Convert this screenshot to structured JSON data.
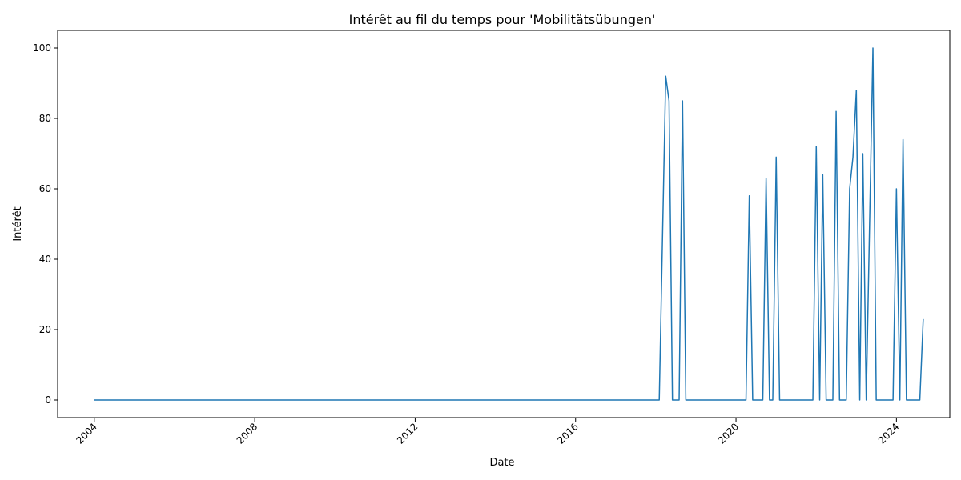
{
  "chart_data": {
    "type": "line",
    "title": "Intérêt au fil du temps pour 'Mobilitätsübungen'",
    "xlabel": "Date",
    "ylabel": "Intérêt",
    "xlim": [
      "2003-02-01",
      "2025-05-01"
    ],
    "ylim": [
      -5,
      105
    ],
    "x_ticks": [
      "2004",
      "2008",
      "2012",
      "2016",
      "2020",
      "2024"
    ],
    "y_ticks": [
      0,
      20,
      40,
      60,
      80,
      100
    ],
    "grid": false,
    "legend": "none",
    "line_color": "#1f77b4",
    "series": [
      {
        "x": [
          "2004-01-01",
          "2018-02-01",
          "2018-04-01",
          "2018-05-01",
          "2018-06-01",
          "2018-07-01",
          "2018-08-01",
          "2018-09-01",
          "2018-10-01",
          "2020-04-01",
          "2020-05-01",
          "2020-06-01",
          "2020-09-01",
          "2020-10-01",
          "2020-11-01",
          "2020-12-01",
          "2021-01-01",
          "2021-02-01",
          "2021-12-01",
          "2022-01-01",
          "2022-02-01",
          "2022-03-01",
          "2022-04-01",
          "2022-06-01",
          "2022-07-01",
          "2022-08-01",
          "2022-10-01",
          "2022-11-01",
          "2022-12-01",
          "2023-01-01",
          "2023-02-01",
          "2023-03-01",
          "2023-04-01",
          "2023-06-01",
          "2023-07-01",
          "2023-08-01",
          "2023-12-01",
          "2024-01-01",
          "2024-02-01",
          "2024-03-01",
          "2024-04-01",
          "2024-08-01",
          "2024-09-01"
        ],
        "values": [
          0,
          0,
          92,
          85,
          0,
          0,
          0,
          85,
          0,
          0,
          58,
          0,
          0,
          63,
          0,
          0,
          69,
          0,
          0,
          72,
          0,
          64,
          0,
          0,
          82,
          0,
          0,
          60,
          69,
          88,
          0,
          70,
          0,
          100,
          0,
          0,
          0,
          60,
          0,
          74,
          0,
          0,
          23
        ]
      }
    ]
  }
}
